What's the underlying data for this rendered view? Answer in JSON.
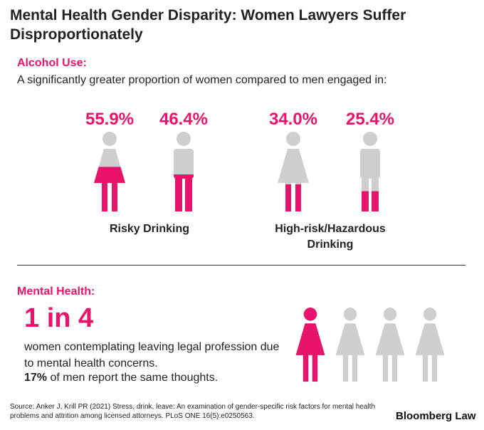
{
  "title": "Mental Health Gender Disparity: Women Lawyers Suffer Disproportionately",
  "alcohol": {
    "label": "Alcohol Use:",
    "intro": "A significantly greater proportion of women compared to men engaged in:"
  },
  "mental": {
    "label": "Mental Health:",
    "big": "1 in 4",
    "desc": "women contemplating leaving legal profession due to mental health concerns.",
    "men_pct": "17%",
    "men_rest": " of men report the same thoughts."
  },
  "source": "Source: Anker J, Krill PR (2021) Stress, drink, leave: An examination of gender-specific risk factors for mental health problems and attrition among licensed attorneys. PLoS ONE 16(5):e0250563.",
  "brand": "Bloomberg Law",
  "colors": {
    "accent": "#e8146c",
    "neutral": "#cfcfcf"
  },
  "chart_data": [
    {
      "type": "bar",
      "caption": "Risky Drinking",
      "categories": [
        "Women",
        "Men"
      ],
      "labels": [
        "55.9%",
        "46.4%"
      ],
      "values": [
        55.9,
        46.4
      ]
    },
    {
      "type": "bar",
      "caption": "High-risk/Hazardous Drinking",
      "categories": [
        "Women",
        "Men"
      ],
      "labels": [
        "34.0%",
        "25.4%"
      ],
      "values": [
        34.0,
        25.4
      ]
    },
    {
      "type": "bar",
      "caption": "1 in 4",
      "categories": [
        "Women"
      ],
      "values": [
        25
      ]
    }
  ]
}
